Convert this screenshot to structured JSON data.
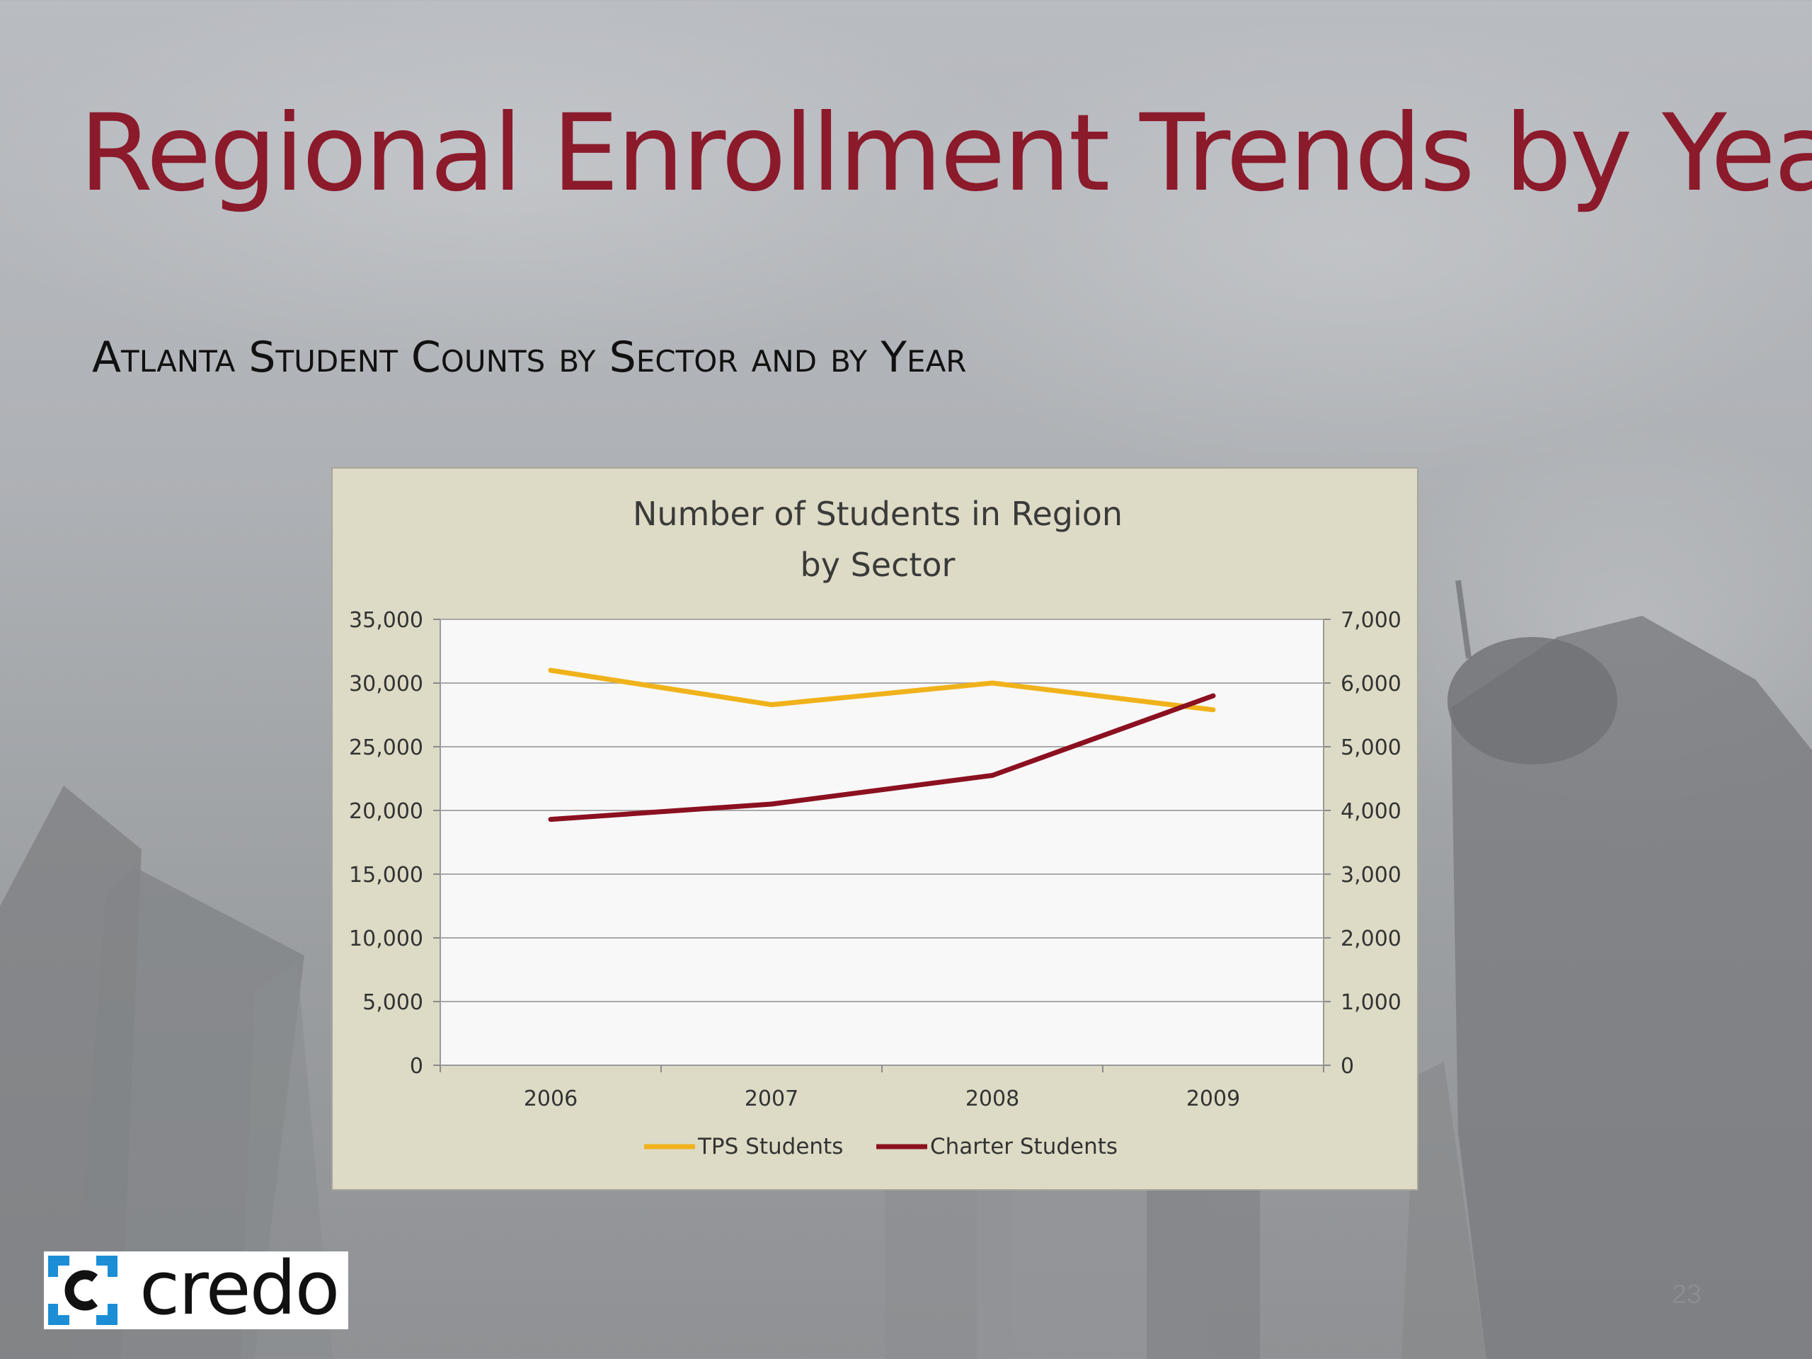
{
  "slide": {
    "title": "Regional Enrollment Trends by Year",
    "subtitle": "Atlanta Student Counts by Sector and by Year",
    "page_number": "23",
    "logo_text": "credo",
    "colors": {
      "title": "#8b1a2b",
      "tps": "#f0b21b",
      "charter": "#8b1020",
      "chart_bg": "#dddbc5",
      "plot_bg": "#f8f8f8"
    }
  },
  "chart_data": {
    "type": "line",
    "title": "Number of Students in Region by Sector",
    "title_lines": [
      "Number of Students in Region",
      "by Sector"
    ],
    "categories": [
      "2006",
      "2007",
      "2008",
      "2009"
    ],
    "series": [
      {
        "name": "TPS Students",
        "axis": "left",
        "color": "#f0b21b",
        "values": [
          31000,
          28300,
          30000,
          27900
        ]
      },
      {
        "name": "Charter Students",
        "axis": "right",
        "color": "#8b1020",
        "values": [
          3860,
          4100,
          4550,
          5800
        ]
      }
    ],
    "y_left": {
      "ylim": [
        0,
        35000
      ],
      "ticks": [
        "0",
        "5,000",
        "10,000",
        "15,000",
        "20,000",
        "25,000",
        "30,000",
        "35,000"
      ]
    },
    "y_right": {
      "ylim": [
        0,
        7000
      ],
      "ticks": [
        "0",
        "1,000",
        "2,000",
        "3,000",
        "4,000",
        "5,000",
        "6,000",
        "7,000"
      ]
    },
    "grid": true,
    "legend": "bottom"
  }
}
